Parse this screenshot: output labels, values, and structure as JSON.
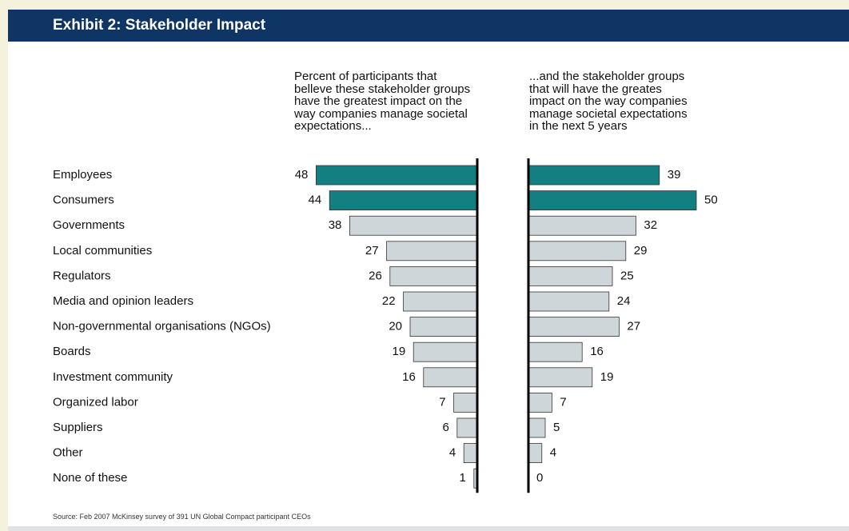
{
  "chart_data": {
    "type": "butterfly",
    "title": "Exhibit 2: Stakeholder Impact",
    "categories": [
      "Employees",
      "Consumers",
      "Governments",
      "Local communities",
      "Regulators",
      "Media and opinion leaders",
      "Non-governmental organisations (NGOs)",
      "Boards",
      "Investment community",
      "Organized labor",
      "Suppliers",
      "Other",
      "None of these"
    ],
    "series": [
      {
        "name": "Percent of participants that\nbelleve these stakeholder groups\nhave the greatest impact on the\nway companies manage societal\nexpectations...",
        "values": [
          48,
          44,
          38,
          27,
          26,
          22,
          20,
          19,
          16,
          7,
          6,
          4,
          1
        ],
        "colors": [
          "#137f80",
          "#137f80",
          "#cfd6da",
          "#cfd6da",
          "#cfd6da",
          "#cfd6da",
          "#cfd6da",
          "#cfd6da",
          "#cfd6da",
          "#cfd6da",
          "#cfd6da",
          "#cfd6da",
          "#cfd6da"
        ]
      },
      {
        "name": "...and the stakeholder groups\nthat will have the greates\nimpact on the way companies\nmanage societal expectations\nin the next 5 years",
        "values": [
          39,
          50,
          32,
          29,
          25,
          24,
          27,
          16,
          19,
          7,
          5,
          4,
          0
        ],
        "colors": [
          "#137f80",
          "#137f80",
          "#cfd6da",
          "#cfd6da",
          "#cfd6da",
          "#cfd6da",
          "#cfd6da",
          "#cfd6da",
          "#cfd6da",
          "#cfd6da",
          "#cfd6da",
          "#cfd6da",
          "#cfd6da"
        ]
      }
    ],
    "source": "Source: Feb 2007 McKinsey survey of 391 UN Global Compact participant CEOs"
  }
}
